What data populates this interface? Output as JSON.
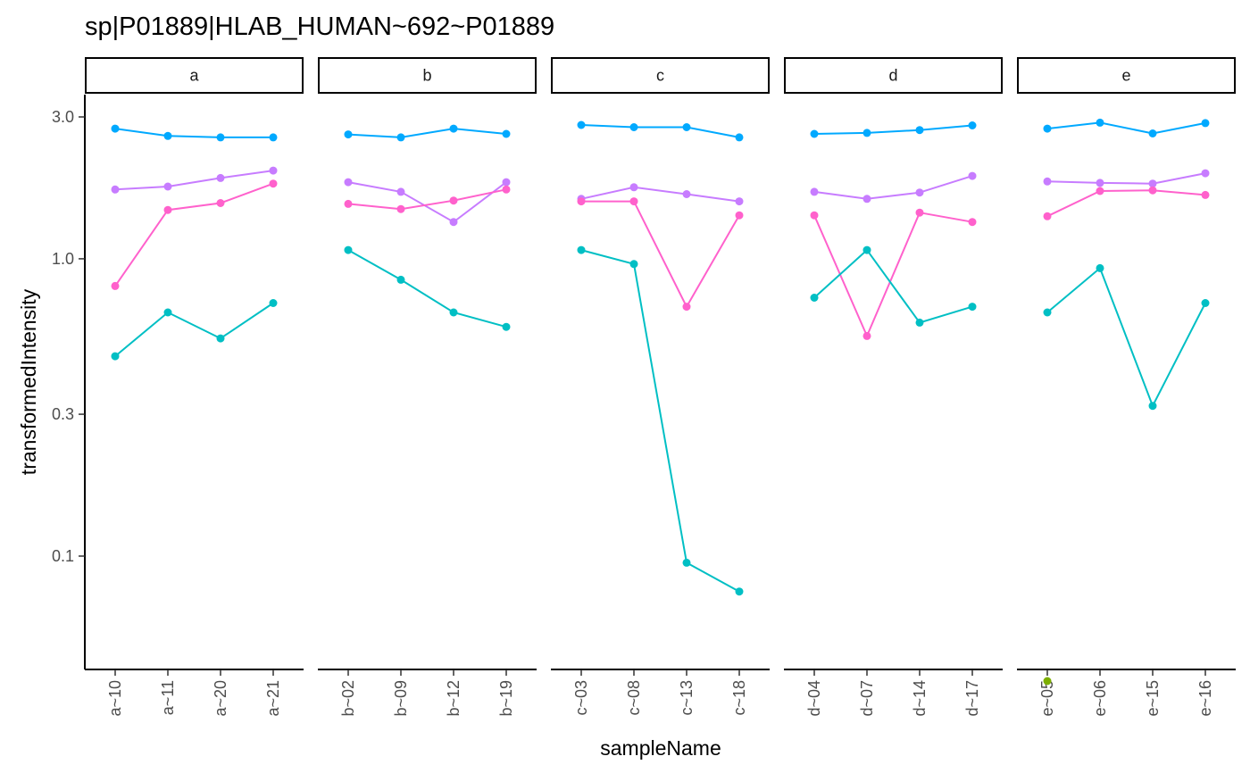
{
  "chart_data": {
    "type": "line",
    "title": "sp|P01889|HLAB_HUMAN~692~P01889",
    "xlabel": "sampleName",
    "ylabel": "transformedIntensity",
    "yscale": "log",
    "ylim": [
      0.042,
      4.2
    ],
    "yticks": [
      {
        "value": 0.1,
        "label": "0.1"
      },
      {
        "value": 0.3,
        "label": "0.3"
      },
      {
        "value": 1.0,
        "label": "1.0"
      },
      {
        "value": 3.0,
        "label": "3.0"
      }
    ],
    "grid": false,
    "legend": "none",
    "colors": {
      "blue": "#00A9FF",
      "purple": "#C77CFF",
      "pink": "#FF61CC",
      "teal": "#00BFC4",
      "green": "#7CAE00"
    },
    "panels": [
      {
        "label": "a",
        "categories": [
          "a~10",
          "a~11",
          "a~20",
          "a~21"
        ],
        "series": [
          {
            "color": "blue",
            "values": [
              2.74,
              2.59,
              2.56,
              2.56
            ]
          },
          {
            "color": "purple",
            "values": [
              1.71,
              1.75,
              1.87,
              1.98
            ]
          },
          {
            "color": "pink",
            "values": [
              0.81,
              1.46,
              1.54,
              1.79
            ]
          },
          {
            "color": "teal",
            "values": [
              0.47,
              0.66,
              0.54,
              0.71
            ]
          }
        ]
      },
      {
        "label": "b",
        "categories": [
          "b~02",
          "b~09",
          "b~12",
          "b~19"
        ],
        "series": [
          {
            "color": "blue",
            "values": [
              2.62,
              2.56,
              2.74,
              2.63
            ]
          },
          {
            "color": "purple",
            "values": [
              1.81,
              1.68,
              1.33,
              1.81
            ]
          },
          {
            "color": "pink",
            "values": [
              1.53,
              1.47,
              1.57,
              1.71
            ]
          },
          {
            "color": "teal",
            "values": [
              1.07,
              0.85,
              0.66,
              0.59
            ]
          }
        ]
      },
      {
        "label": "c",
        "categories": [
          "c~03",
          "c~08",
          "c~13",
          "c~18"
        ],
        "series": [
          {
            "color": "blue",
            "values": [
              2.82,
              2.77,
              2.77,
              2.56
            ]
          },
          {
            "color": "purple",
            "values": [
              1.59,
              1.74,
              1.65,
              1.56
            ]
          },
          {
            "color": "pink",
            "values": [
              1.56,
              1.56,
              0.69,
              1.4
            ]
          },
          {
            "color": "teal",
            "values": [
              1.07,
              0.96,
              0.095,
              0.076
            ]
          }
        ]
      },
      {
        "label": "d",
        "categories": [
          "d~04",
          "d~07",
          "d~14",
          "d~17"
        ],
        "series": [
          {
            "color": "blue",
            "values": [
              2.63,
              2.65,
              2.71,
              2.81
            ]
          },
          {
            "color": "purple",
            "values": [
              1.68,
              1.59,
              1.67,
              1.9
            ]
          },
          {
            "color": "pink",
            "values": [
              1.4,
              0.55,
              1.43,
              1.33
            ]
          },
          {
            "color": "teal",
            "values": [
              0.74,
              1.07,
              0.61,
              0.69
            ]
          }
        ]
      },
      {
        "label": "e",
        "categories": [
          "e~05",
          "e~06",
          "e~15",
          "e~16"
        ],
        "series": [
          {
            "color": "blue",
            "values": [
              2.74,
              2.87,
              2.64,
              2.86
            ]
          },
          {
            "color": "purple",
            "values": [
              1.82,
              1.8,
              1.79,
              1.94
            ]
          },
          {
            "color": "pink",
            "values": [
              1.39,
              1.69,
              1.7,
              1.64
            ]
          },
          {
            "color": "teal",
            "values": [
              0.66,
              0.93,
              0.32,
              0.71
            ]
          },
          {
            "color": "green",
            "values": [
              0.038,
              null,
              null,
              null
            ]
          }
        ]
      }
    ]
  }
}
